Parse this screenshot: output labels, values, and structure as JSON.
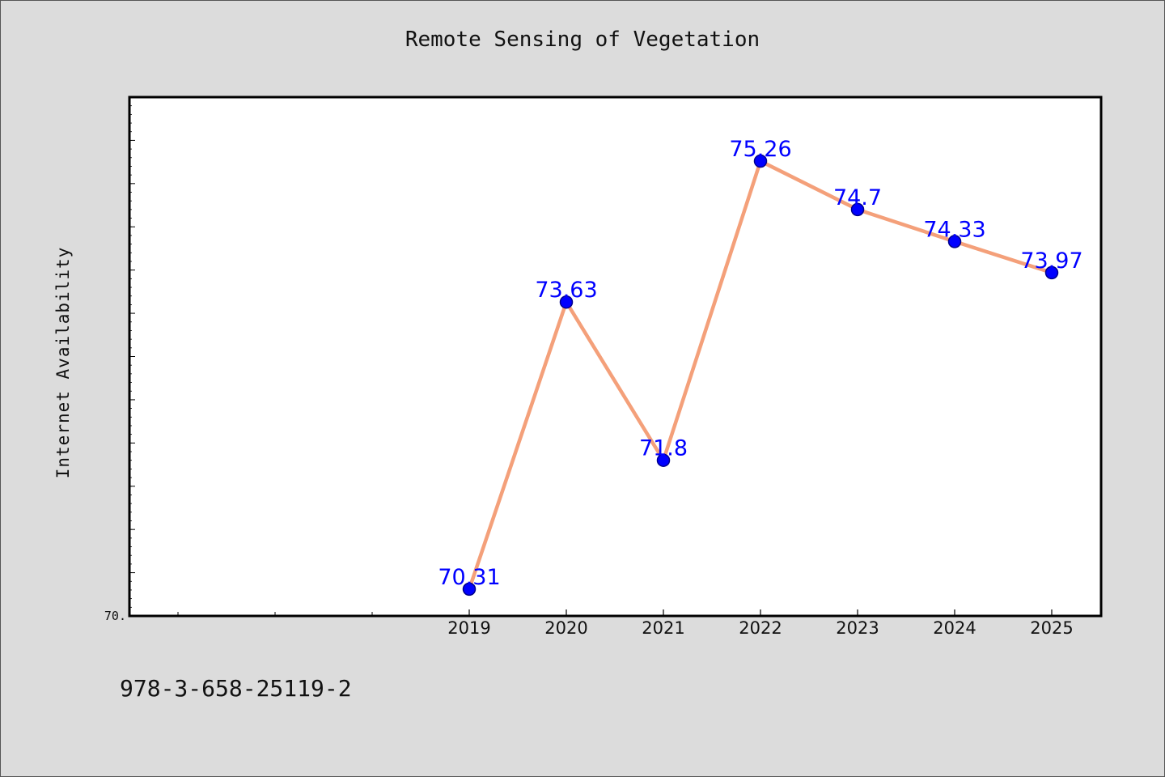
{
  "chart_data": {
    "type": "line",
    "title": "Remote Sensing of Vegetation",
    "ylabel": "Internet Availability",
    "xlabel": "",
    "categories": [
      "2019",
      "2020",
      "2021",
      "2022",
      "2023",
      "2024",
      "2025"
    ],
    "series": [
      {
        "values": [
          70.31,
          73.63,
          71.8,
          75.26,
          74.7,
          74.33,
          73.97
        ]
      }
    ],
    "data_labels": [
      "70.31",
      "73.63",
      "71.8",
      "75.26",
      "74.7",
      "74.33",
      "73.97"
    ],
    "ytick_labels": [
      "70."
    ],
    "ylim": [
      70,
      76
    ],
    "grid": false,
    "colors": {
      "line": "#f4a07a",
      "marker": "#0000ff",
      "marker_edge": "#00008b",
      "data_label": "#0000ff"
    }
  },
  "footer": {
    "code": "978-3-658-25119-2"
  }
}
